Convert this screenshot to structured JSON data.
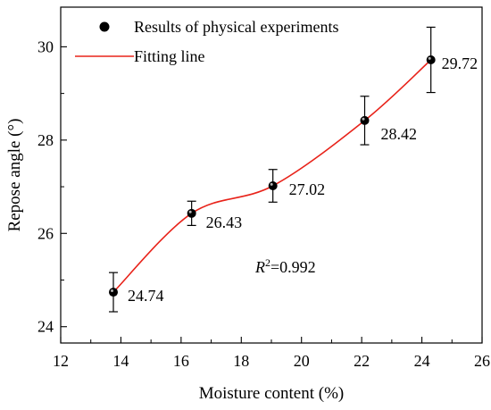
{
  "chart_data": {
    "type": "scatter",
    "xlabel": "Moisture content (%)",
    "ylabel": "Repose  angle (°)",
    "xlim": [
      12,
      26
    ],
    "ylim": [
      23.65,
      30.85
    ],
    "x_ticks": [
      12,
      14,
      16,
      18,
      20,
      22,
      24,
      26
    ],
    "y_ticks": [
      24,
      26,
      28,
      30
    ],
    "grid": false,
    "legend_position": "top-left",
    "series": [
      {
        "name": "Results of physical experiments",
        "type": "scatter",
        "color": "#000000",
        "points": [
          {
            "x": 13.75,
            "y": 24.74,
            "err": 0.42,
            "label": "24.74"
          },
          {
            "x": 16.35,
            "y": 26.43,
            "err": 0.26,
            "label": "26.43"
          },
          {
            "x": 19.05,
            "y": 27.02,
            "err": 0.35,
            "label": "27.02"
          },
          {
            "x": 22.1,
            "y": 28.42,
            "err": 0.52,
            "label": "28.42"
          },
          {
            "x": 24.3,
            "y": 29.72,
            "err": 0.7,
            "label": "29.72"
          }
        ]
      },
      {
        "name": "Fitting line",
        "type": "line",
        "color": "#e8231a",
        "points": [
          {
            "x": 13.75,
            "y": 24.74
          },
          {
            "x": 16.35,
            "y": 26.43
          },
          {
            "x": 19.05,
            "y": 27.02
          },
          {
            "x": 22.1,
            "y": 28.42
          },
          {
            "x": 24.3,
            "y": 29.72
          }
        ]
      }
    ],
    "annotation": {
      "prefix": "R",
      "sup": "2",
      "suffix": "=0.992"
    }
  }
}
